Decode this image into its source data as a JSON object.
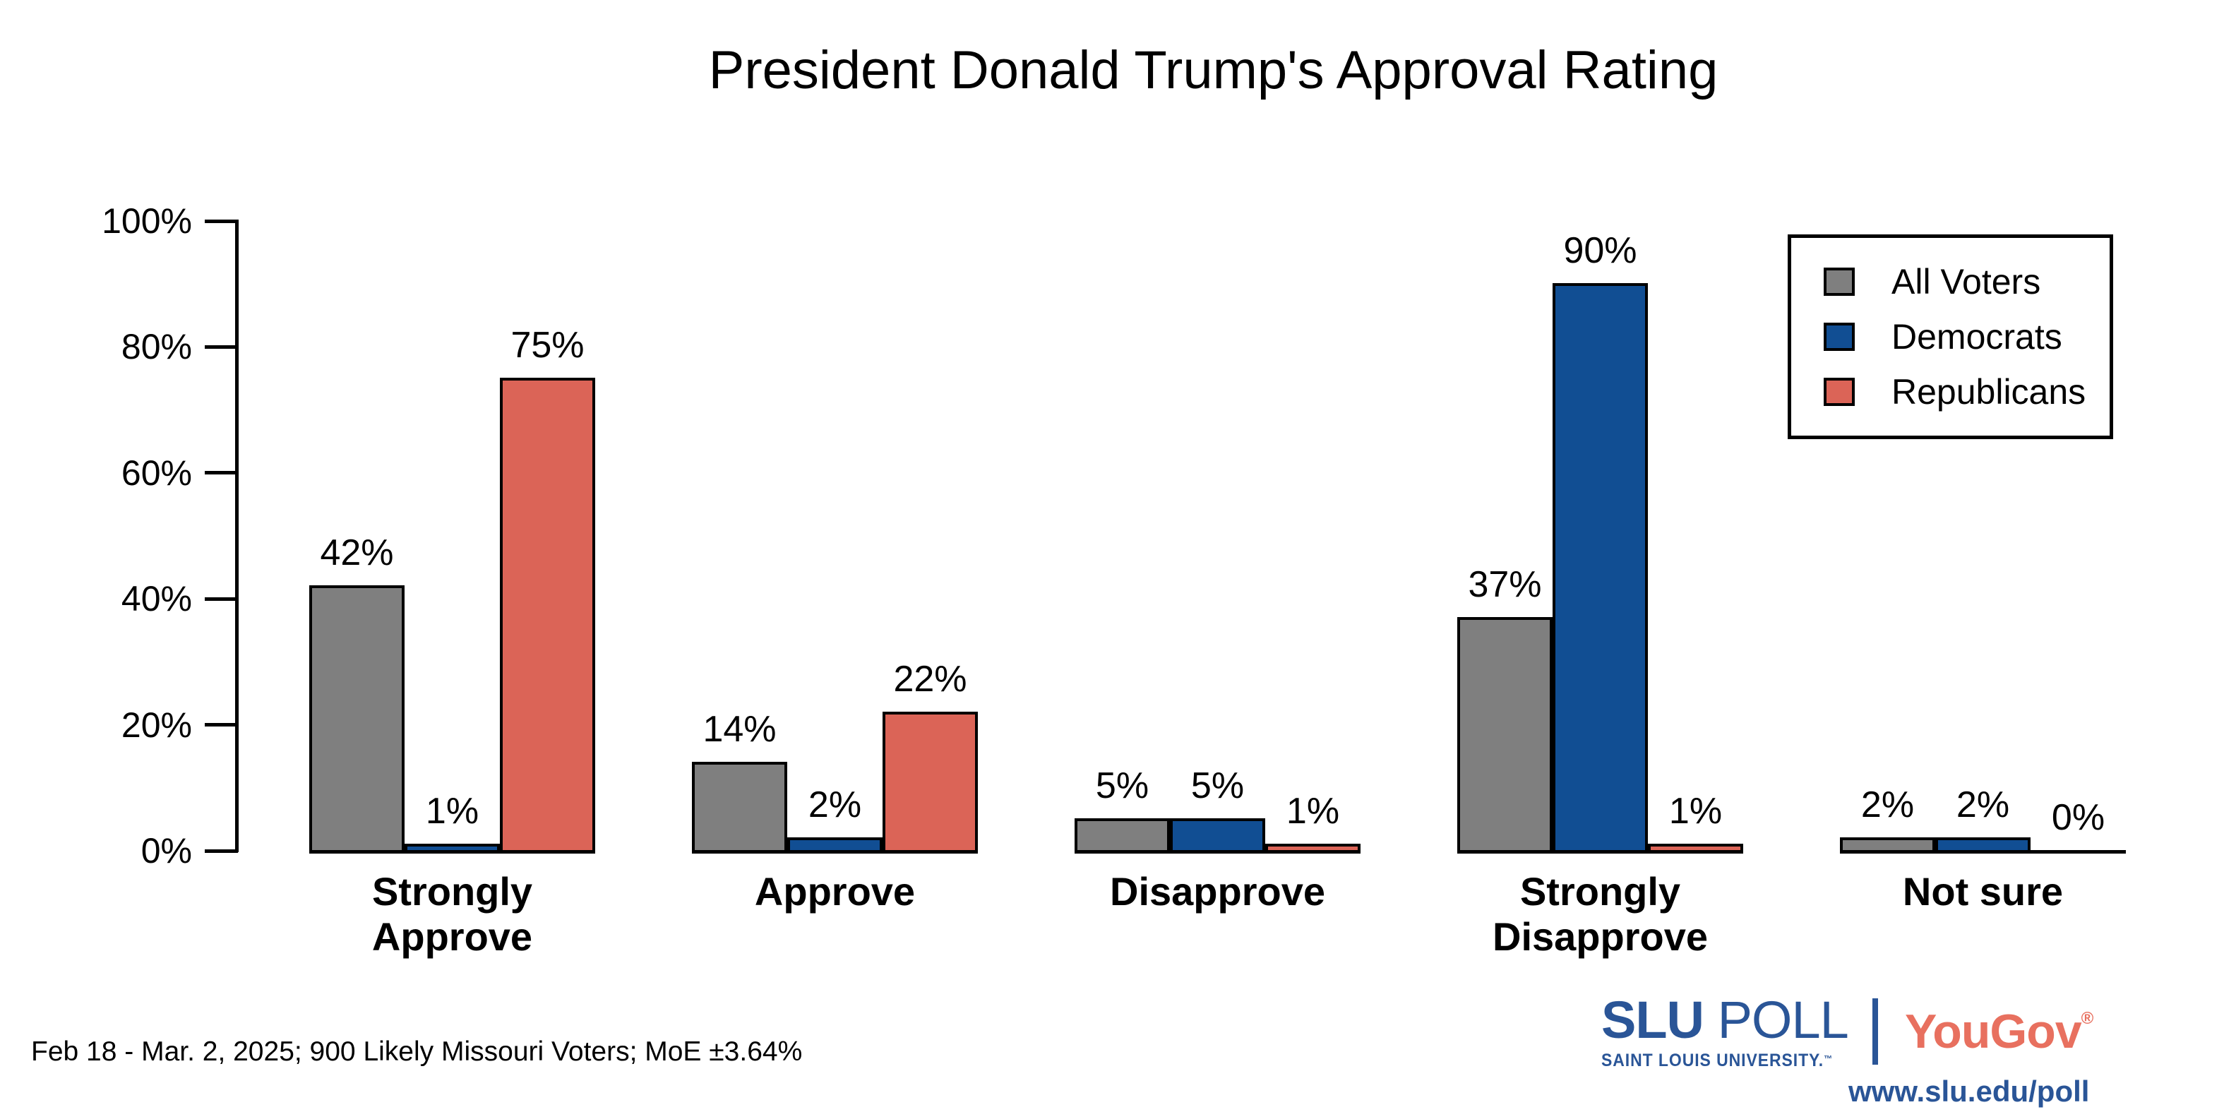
{
  "title": "President Donald Trump's Approval Rating",
  "chart_data": {
    "type": "bar",
    "categories": [
      "Strongly Approve",
      "Approve",
      "Disapprove",
      "Strongly Disapprove",
      "Not sure"
    ],
    "category_label_lines": [
      [
        "Strongly",
        "Approve"
      ],
      [
        "Approve"
      ],
      [
        "Disapprove"
      ],
      [
        "Strongly",
        "Disapprove"
      ],
      [
        "Not sure"
      ]
    ],
    "series": [
      {
        "name": "All Voters",
        "color": "#7f7f7f",
        "values": [
          42,
          14,
          5,
          37,
          2
        ]
      },
      {
        "name": "Democrats",
        "color": "#114e93",
        "values": [
          1,
          2,
          5,
          90,
          2
        ]
      },
      {
        "name": "Republicans",
        "color": "#db6457",
        "values": [
          75,
          22,
          1,
          1,
          0
        ]
      }
    ],
    "value_labels": [
      [
        "42%",
        "14%",
        "5%",
        "37%",
        "2%"
      ],
      [
        "1%",
        "2%",
        "5%",
        "90%",
        "2%"
      ],
      [
        "75%",
        "22%",
        "1%",
        "1%",
        "0%"
      ]
    ],
    "y_ticks": [
      "0%",
      "20%",
      "40%",
      "60%",
      "80%",
      "100%"
    ],
    "ylim": [
      0,
      100
    ],
    "grid": false,
    "legend_position": "top-right",
    "bar_outline_color": "#000000"
  },
  "footer": {
    "note": "Feb 18 - Mar. 2, 2025; 900 Likely Missouri Voters; MoE ±3.64%"
  },
  "branding": {
    "slu_name": "SLU",
    "slu_poll": "POLL",
    "slu_subtitle": "SAINT LOUIS UNIVERSITY.",
    "slu_trademark": "™",
    "separator": "|",
    "partner": "YouGov",
    "partner_registered": "®",
    "url": "www.slu.edu/poll",
    "slu_blue": "#2a5597",
    "partner_red": "#e8705f"
  }
}
